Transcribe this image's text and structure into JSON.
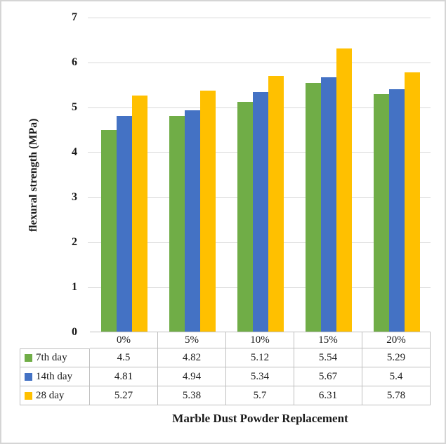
{
  "chart_data": {
    "type": "bar",
    "title": "",
    "ylabel": "flexural strength (MPa)",
    "xlabel": "Marble Dust Powder Replacement",
    "categories": [
      "0%",
      "5%",
      "10%",
      "15%",
      "20%"
    ],
    "series": [
      {
        "name": "7th day",
        "color": "#70AD47",
        "values": [
          "4.5",
          "4.82",
          "5.12",
          "5.54",
          "5.29"
        ]
      },
      {
        "name": "14th day",
        "color": "#4472C4",
        "values": [
          "4.81",
          "4.94",
          "5.34",
          "5.67",
          "5.4"
        ]
      },
      {
        "name": "28 day",
        "color": "#FFC000",
        "values": [
          "5.27",
          "5.38",
          "5.7",
          "6.31",
          "5.78"
        ]
      }
    ],
    "ylim": [
      0,
      7
    ],
    "ytick_step": 1,
    "ytick_labels": [
      "0",
      "1",
      "2",
      "3",
      "4",
      "5",
      "6",
      "7"
    ],
    "grid": true,
    "legend_position": "table-left"
  },
  "colors": {
    "gridline": "#D9D9D9",
    "table_border": "#BFBFBF",
    "frame_border": "#D5D5D5",
    "text": "#1A1A1A"
  }
}
